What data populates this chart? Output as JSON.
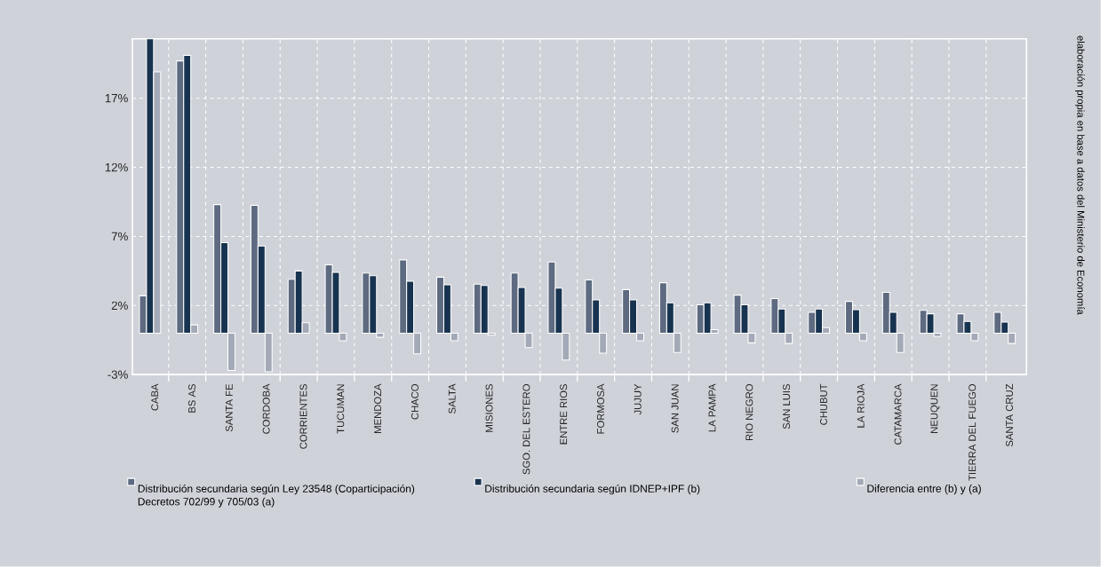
{
  "chart_data": {
    "type": "bar",
    "categories": [
      "CABA",
      "BS AS",
      "SANTA FE",
      "CORDOBA",
      "CORRIENTES",
      "TUCUMAN",
      "MENDOZA",
      "CHACO",
      "SALTA",
      "MISIONES",
      "SGO. DEL ESTERO",
      "ENTRE RIOS",
      "FORMOSA",
      "JUJUY",
      "SAN JUAN",
      "LA PAMPA",
      "RIO NEGRO",
      "SAN LUIS",
      "CHUBUT",
      "LA RIOJA",
      "CATAMARCA",
      "NEUQUEN",
      "TIERRA DEL FUEGO",
      "SANTA CRUZ"
    ],
    "series": [
      {
        "name": "Distribución secundaria según Ley 23548 (Coparticipación) Decretos 702/99 y 705/03 (a)",
        "color": "#5d6a80",
        "values": [
          2.7,
          19.7,
          9.3,
          9.25,
          3.9,
          4.95,
          4.35,
          5.3,
          4.05,
          3.55,
          4.35,
          5.15,
          3.85,
          3.15,
          3.65,
          2.05,
          2.75,
          2.5,
          1.5,
          2.3,
          2.95,
          1.65,
          1.4,
          1.5
        ]
      },
      {
        "name": "Distribución secundaria según IDNEP+IPF (b)",
        "color": "#17334f",
        "values": [
          21.3,
          20.1,
          6.55,
          6.3,
          4.5,
          4.4,
          4.15,
          3.75,
          3.5,
          3.45,
          3.3,
          3.25,
          2.4,
          2.4,
          2.2,
          2.2,
          2.05,
          1.75,
          1.75,
          1.7,
          1.5,
          1.4,
          0.85,
          0.8
        ]
      },
      {
        "name": "Diferencia entre (b) y (a)",
        "color": "#a3a9b6",
        "values": [
          18.9,
          0.6,
          -2.7,
          -2.8,
          0.75,
          -0.55,
          -0.3,
          -1.5,
          -0.55,
          -0.15,
          -1.05,
          -1.95,
          -1.45,
          -0.55,
          -1.4,
          0.25,
          -0.7,
          -0.75,
          0.4,
          -0.55,
          -1.4,
          -0.25,
          -0.55,
          -0.75
        ]
      }
    ],
    "ylim": [
      -3,
      21.3
    ],
    "yticks": [
      {
        "value": -3,
        "label": "-3%"
      },
      {
        "value": 2,
        "label": "2%"
      },
      {
        "value": 7,
        "label": "7%"
      },
      {
        "value": 12,
        "label": "12%"
      },
      {
        "value": 17,
        "label": "17%"
      }
    ],
    "grid": true,
    "legend": "bottom",
    "annotations": [
      "elaboración propia en base a datos del Ministerio de Economía"
    ]
  }
}
